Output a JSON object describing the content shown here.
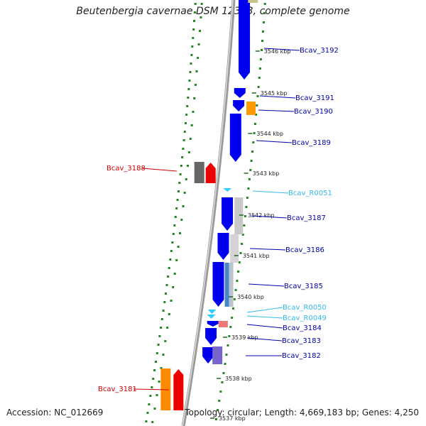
{
  "title": "Beutenbergia cavernae DSM 12333, complete genome",
  "accession": "Accession: NC_012669",
  "summary": "Topology: circular; Length: 4,669,183 bp; Genes: 4,250",
  "colors": {
    "forward_cds": "#0000ee",
    "trna": "#33ccff",
    "reverse_label": "#cc0000",
    "forward_label": "#0000aa",
    "trna_label": "#33bbee",
    "tick_dots": "#228822",
    "backbone": "#888888"
  },
  "scale_ticks": [
    {
      "label": "3546 kbp"
    },
    {
      "label": "3545 kbp"
    },
    {
      "label": "3544 kbp"
    },
    {
      "label": "3543 kbp"
    },
    {
      "label": "3542 kbp"
    },
    {
      "label": "3541 kbp"
    },
    {
      "label": "3540 kbp"
    },
    {
      "label": "3539 kbp"
    },
    {
      "label": "3538 kbp"
    },
    {
      "label": "3537 kbp"
    }
  ],
  "gene_labels": [
    {
      "name": "Bcav_3192",
      "type": "forward"
    },
    {
      "name": "Bcav_3191",
      "type": "forward"
    },
    {
      "name": "Bcav_3190",
      "type": "forward"
    },
    {
      "name": "Bcav_3189",
      "type": "forward"
    },
    {
      "name": "Bcav_3188",
      "type": "reverse"
    },
    {
      "name": "Bcav_R0051",
      "type": "trna"
    },
    {
      "name": "Bcav_3187",
      "type": "forward"
    },
    {
      "name": "Bcav_3186",
      "type": "forward"
    },
    {
      "name": "Bcav_3185",
      "type": "forward"
    },
    {
      "name": "Bcav_R0050",
      "type": "trna"
    },
    {
      "name": "Bcav_R0049",
      "type": "trna"
    },
    {
      "name": "Bcav_3184",
      "type": "forward"
    },
    {
      "name": "Bcav_3183",
      "type": "forward"
    },
    {
      "name": "Bcav_3182",
      "type": "forward"
    },
    {
      "name": "Bcav_3181",
      "type": "reverse"
    }
  ]
}
